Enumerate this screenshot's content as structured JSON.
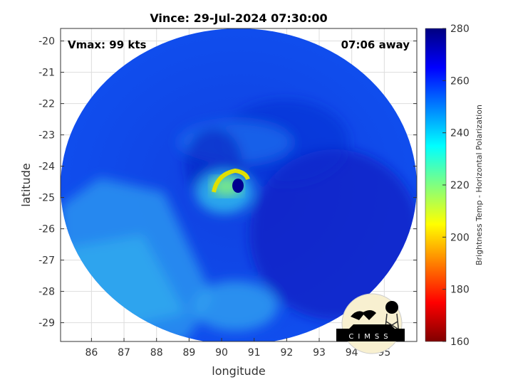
{
  "chart_data": {
    "type": "heatmap",
    "title": "Vince: 29-Jul-2024 07:30:00",
    "xlabel": "longitude",
    "ylabel": "latitude",
    "xlim": [
      85.05,
      96.0
    ],
    "ylim": [
      -29.6,
      -19.6
    ],
    "xticks": [
      86,
      87,
      88,
      89,
      90,
      91,
      92,
      93,
      94,
      95
    ],
    "yticks": [
      -20,
      -21,
      -22,
      -23,
      -24,
      -25,
      -26,
      -27,
      -28,
      -29
    ],
    "grid": true,
    "annotations": {
      "vmax": "Vmax: 99 kts",
      "away": "07:06 away"
    },
    "colorbar": {
      "label": "Brightness Temp - Horizontal Polarization",
      "range": [
        160,
        280
      ],
      "ticks": [
        160,
        180,
        200,
        220,
        240,
        260,
        280
      ],
      "colormap": "jet"
    },
    "storm_center": {
      "lon": 90.4,
      "lat": -24.8
    }
  },
  "logo": "CIMSS"
}
